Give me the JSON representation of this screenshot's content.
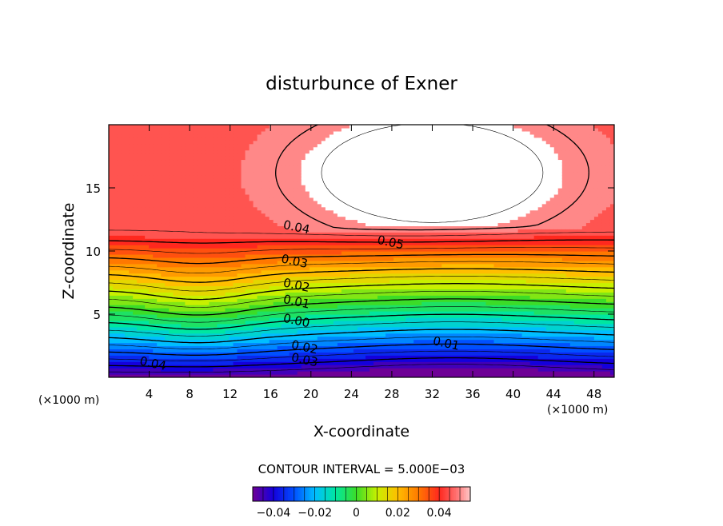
{
  "chart_data": {
    "type": "heatmap",
    "subtype": "filled-contour",
    "title": "disturbunce of Exner",
    "xlabel": "X-coordinate",
    "ylabel": "Z-coordinate",
    "x_unit": "(×1000 m)",
    "y_unit": "(×1000 m)",
    "xlim": [
      0,
      50
    ],
    "ylim": [
      0,
      20
    ],
    "x_ticks": [
      4,
      8,
      12,
      16,
      20,
      24,
      28,
      32,
      36,
      40,
      44,
      48
    ],
    "y_ticks": [
      5,
      10,
      15
    ],
    "grid": false,
    "contour_interval_label": "CONTOUR INTERVAL = 5.000E−03",
    "contour_interval": 0.005,
    "value_range": [
      -0.05,
      0.055
    ],
    "contour_labels": [
      {
        "text": "0.05",
        "x": 26.5,
        "z": 10.6
      },
      {
        "text": "0.04",
        "x": 17.2,
        "z": 11.8
      },
      {
        "text": "0.03",
        "x": 17.0,
        "z": 9.1
      },
      {
        "text": "0.02",
        "x": 17.2,
        "z": 7.2
      },
      {
        "text": "0.01",
        "x": 17.2,
        "z": 5.9
      },
      {
        "text": "0.00",
        "x": 17.2,
        "z": 4.4
      },
      {
        "text": "0.01",
        "x": 32.0,
        "z": 2.6
      },
      {
        "text": "0.02",
        "x": 18.0,
        "z": 2.3
      },
      {
        "text": "0.03",
        "x": 18.0,
        "z": 1.3
      },
      {
        "text": "0.04",
        "x": 3.0,
        "z": 1.0
      }
    ],
    "colorbar": {
      "ticks": [
        -0.04,
        -0.02,
        0,
        0.02,
        0.04
      ],
      "tick_labels": [
        "−0.04",
        "−0.02",
        "0",
        "0.02",
        "0.04"
      ]
    }
  }
}
